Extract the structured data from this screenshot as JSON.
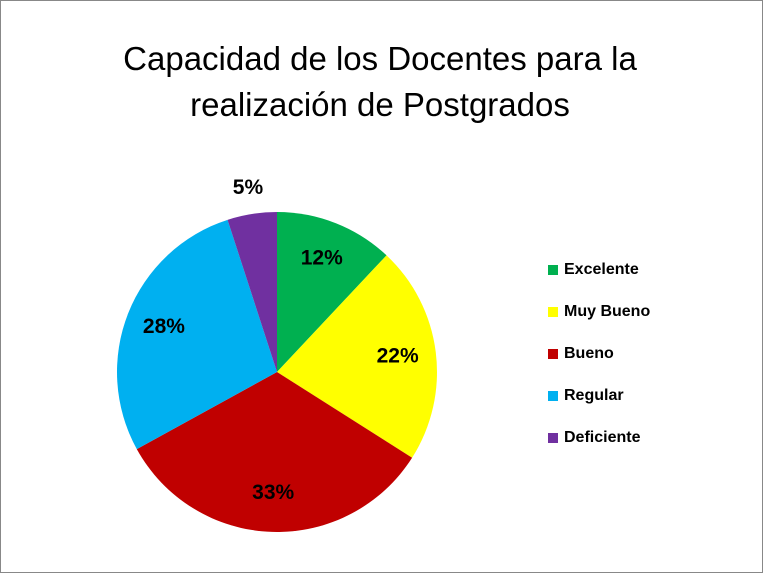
{
  "chart_data": {
    "type": "pie",
    "title": "Capacidad de los Docentes para la realización de Postgrados",
    "categories": [
      "Excelente",
      "Muy Bueno",
      "Bueno",
      "Regular",
      "Deficiente"
    ],
    "values": [
      12,
      22,
      33,
      28,
      5
    ],
    "value_labels": [
      "12%",
      "22%",
      "33%",
      "28%",
      "5%"
    ],
    "colors": [
      "#00b050",
      "#ffff00",
      "#c00000",
      "#00b0f0",
      "#7030a0"
    ],
    "legend": "right"
  }
}
